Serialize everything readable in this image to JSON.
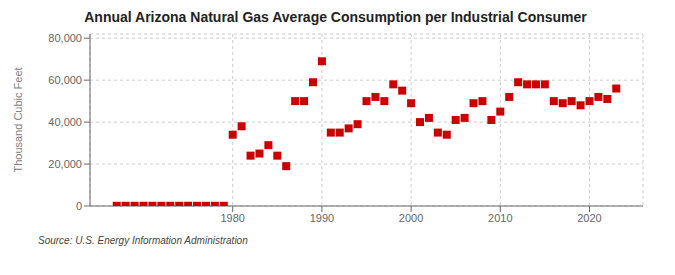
{
  "chart_data": {
    "type": "scatter",
    "title": "Annual Arizona Natural Gas Average Consumption per Industrial Consumer",
    "ylabel": "Thousand Cubic Feet",
    "annotations": [
      "Source: U.S. Energy Information Administration"
    ],
    "x": [
      1967,
      1968,
      1969,
      1970,
      1971,
      1972,
      1973,
      1974,
      1975,
      1976,
      1977,
      1978,
      1979,
      1980,
      1981,
      1982,
      1983,
      1984,
      1985,
      1986,
      1987,
      1988,
      1989,
      1990,
      1991,
      1992,
      1993,
      1994,
      1995,
      1996,
      1997,
      1998,
      1999,
      2000,
      2001,
      2002,
      2003,
      2004,
      2005,
      2006,
      2007,
      2008,
      2009,
      2010,
      2011,
      2012,
      2013,
      2014,
      2015,
      2016,
      2017,
      2018,
      2019,
      2020,
      2021,
      2022,
      2023
    ],
    "values": [
      100,
      100,
      100,
      100,
      100,
      100,
      100,
      100,
      100,
      100,
      100,
      100,
      100,
      34000,
      38000,
      24000,
      25000,
      29000,
      24000,
      19000,
      50000,
      50000,
      59000,
      69000,
      35000,
      35000,
      37000,
      39000,
      50000,
      52000,
      50000,
      58000,
      55000,
      49000,
      40000,
      42000,
      35000,
      34000,
      41000,
      42000,
      49000,
      50000,
      41000,
      45000,
      52000,
      59000,
      58000,
      58000,
      58000,
      50000,
      49000,
      50000,
      48000,
      50000,
      52000,
      51000,
      56000
    ],
    "color": "#cc0000",
    "marker": "square",
    "xlim": [
      1964,
      2026
    ],
    "xticks": [
      1980,
      1990,
      2000,
      2010,
      2020
    ],
    "ylim": [
      0,
      82000
    ],
    "yticks": [
      0,
      {
        "value": 20000,
        "label": "20,000"
      },
      {
        "value": 40000,
        "label": "40,000"
      },
      {
        "value": 60000,
        "label": "60,000"
      },
      {
        "value": 80000,
        "label": "80,000"
      }
    ],
    "grid": true
  }
}
